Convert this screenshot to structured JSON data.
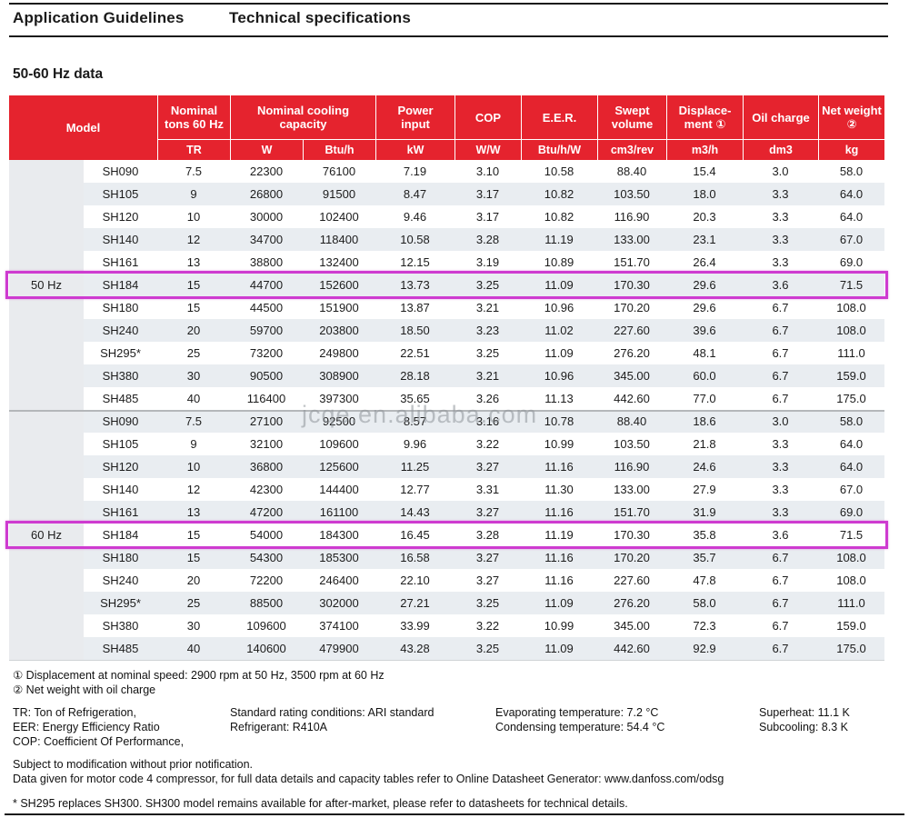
{
  "tabs": {
    "application_guidelines": "Application Guidelines",
    "technical_specifications": "Technical specifications"
  },
  "section_title": "50-60 Hz data",
  "watermark": "jcqe.en.alibaba.com",
  "colors": {
    "header_red": "#e5232e",
    "highlight_magenta": "#ce3bd0",
    "row_stripe": "#e9edf1",
    "label_column_gray": "#e9ebee"
  },
  "table": {
    "model_header": "Model",
    "groups": [
      {
        "lines": [
          "Nominal",
          "tons 60 Hz"
        ],
        "units": [
          "TR"
        ]
      },
      {
        "lines": [
          "Nominal cooling",
          "capacity"
        ],
        "units": [
          "W",
          "Btu/h"
        ]
      },
      {
        "lines": [
          "Power",
          "input"
        ],
        "units": [
          "kW"
        ]
      },
      {
        "lines": [
          "COP"
        ],
        "units": [
          "W/W"
        ]
      },
      {
        "lines": [
          "E.E.R."
        ],
        "units": [
          "Btu/h/W"
        ]
      },
      {
        "lines": [
          "Swept",
          "volume"
        ],
        "units": [
          "cm3/rev"
        ]
      },
      {
        "lines": [
          "Displace-",
          "ment ①"
        ],
        "units": [
          "m3/h"
        ]
      },
      {
        "lines": [
          "Oil charge"
        ],
        "units": [
          "dm3"
        ]
      },
      {
        "lines": [
          "Net weight",
          "②"
        ],
        "units": [
          "kg"
        ]
      }
    ],
    "sections": [
      {
        "label": "50 Hz",
        "highlight_row": 5,
        "rows": [
          [
            "SH090",
            "7.5",
            "22300",
            "76100",
            "7.19",
            "3.10",
            "10.58",
            "88.40",
            "15.4",
            "3.0",
            "58.0"
          ],
          [
            "SH105",
            "9",
            "26800",
            "91500",
            "8.47",
            "3.17",
            "10.82",
            "103.50",
            "18.0",
            "3.3",
            "64.0"
          ],
          [
            "SH120",
            "10",
            "30000",
            "102400",
            "9.46",
            "3.17",
            "10.82",
            "116.90",
            "20.3",
            "3.3",
            "64.0"
          ],
          [
            "SH140",
            "12",
            "34700",
            "118400",
            "10.58",
            "3.28",
            "11.19",
            "133.00",
            "23.1",
            "3.3",
            "67.0"
          ],
          [
            "SH161",
            "13",
            "38800",
            "132400",
            "12.15",
            "3.19",
            "10.89",
            "151.70",
            "26.4",
            "3.3",
            "69.0"
          ],
          [
            "SH184",
            "15",
            "44700",
            "152600",
            "13.73",
            "3.25",
            "11.09",
            "170.30",
            "29.6",
            "3.6",
            "71.5"
          ],
          [
            "SH180",
            "15",
            "44500",
            "151900",
            "13.87",
            "3.21",
            "10.96",
            "170.20",
            "29.6",
            "6.7",
            "108.0"
          ],
          [
            "SH240",
            "20",
            "59700",
            "203800",
            "18.50",
            "3.23",
            "11.02",
            "227.60",
            "39.6",
            "6.7",
            "108.0"
          ],
          [
            "SH295*",
            "25",
            "73200",
            "249800",
            "22.51",
            "3.25",
            "11.09",
            "276.20",
            "48.1",
            "6.7",
            "111.0"
          ],
          [
            "SH380",
            "30",
            "90500",
            "308900",
            "28.18",
            "3.21",
            "10.96",
            "345.00",
            "60.0",
            "6.7",
            "159.0"
          ],
          [
            "SH485",
            "40",
            "116400",
            "397300",
            "35.65",
            "3.26",
            "11.13",
            "442.60",
            "77.0",
            "6.7",
            "175.0"
          ]
        ]
      },
      {
        "label": "60 Hz",
        "highlight_row": 5,
        "rows": [
          [
            "SH090",
            "7.5",
            "27100",
            "92500",
            "8.57",
            "3.16",
            "10.78",
            "88.40",
            "18.6",
            "3.0",
            "58.0"
          ],
          [
            "SH105",
            "9",
            "32100",
            "109600",
            "9.96",
            "3.22",
            "10.99",
            "103.50",
            "21.8",
            "3.3",
            "64.0"
          ],
          [
            "SH120",
            "10",
            "36800",
            "125600",
            "11.25",
            "3.27",
            "11.16",
            "116.90",
            "24.6",
            "3.3",
            "64.0"
          ],
          [
            "SH140",
            "12",
            "42300",
            "144400",
            "12.77",
            "3.31",
            "11.30",
            "133.00",
            "27.9",
            "3.3",
            "67.0"
          ],
          [
            "SH161",
            "13",
            "47200",
            "161100",
            "14.43",
            "3.27",
            "11.16",
            "151.70",
            "31.9",
            "3.3",
            "69.0"
          ],
          [
            "SH184",
            "15",
            "54000",
            "184300",
            "16.45",
            "3.28",
            "11.19",
            "170.30",
            "35.8",
            "3.6",
            "71.5"
          ],
          [
            "SH180",
            "15",
            "54300",
            "185300",
            "16.58",
            "3.27",
            "11.16",
            "170.20",
            "35.7",
            "6.7",
            "108.0"
          ],
          [
            "SH240",
            "20",
            "72200",
            "246400",
            "22.10",
            "3.27",
            "11.16",
            "227.60",
            "47.8",
            "6.7",
            "108.0"
          ],
          [
            "SH295*",
            "25",
            "88500",
            "302000",
            "27.21",
            "3.25",
            "11.09",
            "276.20",
            "58.0",
            "6.7",
            "111.0"
          ],
          [
            "SH380",
            "30",
            "109600",
            "374100",
            "33.99",
            "3.22",
            "10.99",
            "345.00",
            "72.3",
            "6.7",
            "159.0"
          ],
          [
            "SH485",
            "40",
            "140600",
            "479900",
            "43.28",
            "3.25",
            "11.09",
            "442.60",
            "92.9",
            "6.7",
            "175.0"
          ]
        ]
      }
    ]
  },
  "footnotes": {
    "note1": "① Displacement at nominal speed: 2900 rpm at 50 Hz, 3500 rpm at 60 Hz",
    "note2": "② Net weight with oil charge"
  },
  "abbrev": {
    "col1": [
      "TR: Ton of Refrigeration,",
      "EER: Energy Efficiency Ratio",
      "COP: Coefficient Of Performance,"
    ],
    "col2": [
      "Standard rating conditions: ARI standard",
      "Refrigerant: R410A"
    ],
    "col3": [
      "Evaporating temperature: 7.2 °C",
      "Condensing temperature: 54.4 °C"
    ],
    "col4": [
      "Superheat: 11.1 K",
      "Subcooling: 8.3 K"
    ]
  },
  "notes": {
    "line1": "Subject to modification without prior notification.",
    "line2_prefix": "Data given for motor code 4 compressor, for full data details and capacity tables refer to Online Datasheet Generator:  ",
    "line2_url": "www.danfoss.com/odsg",
    "line3": "* SH295 replaces SH300. SH300 model remains available for after-market, please refer to datasheets for technical details."
  }
}
